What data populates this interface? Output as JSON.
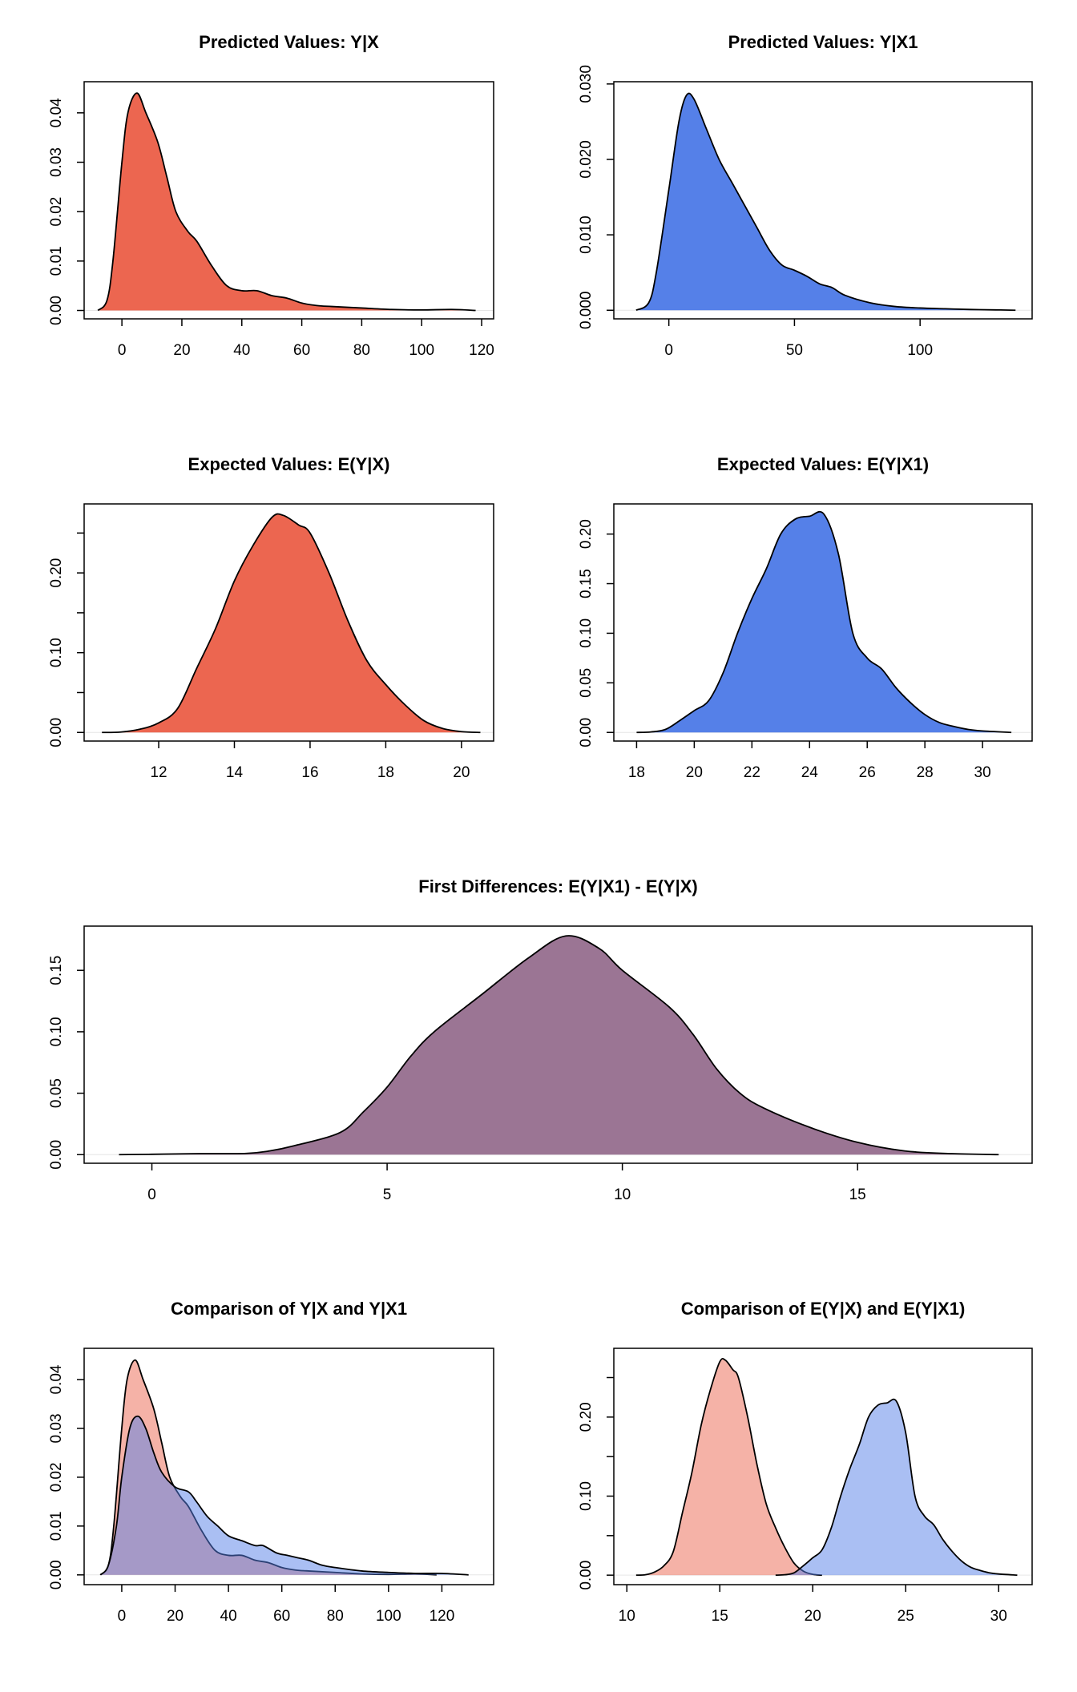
{
  "chart_data": [
    {
      "type": "area",
      "title": "Predicted Values: Y|X",
      "xlim": [
        -12.6,
        124
      ],
      "ylim": [
        -0.0017,
        0.0463
      ],
      "xticks": [
        0,
        20,
        40,
        60,
        80,
        100,
        120
      ],
      "yticks": [
        {
          "value": 0,
          "label": "0.00"
        },
        0.01,
        0.02,
        0.03,
        0.04
      ],
      "series": [
        {
          "color": "#ec6650",
          "x": [
            -8,
            -5,
            -3,
            0,
            2,
            5,
            8,
            12,
            15,
            18,
            22,
            25,
            30,
            35,
            40,
            45,
            50,
            55,
            60,
            65,
            70,
            80,
            90,
            100,
            110,
            118
          ],
          "values": [
            0,
            0.002,
            0.01,
            0.03,
            0.04,
            0.044,
            0.04,
            0.034,
            0.027,
            0.02,
            0.016,
            0.014,
            0.009,
            0.005,
            0.004,
            0.004,
            0.003,
            0.0025,
            0.0015,
            0.001,
            0.0008,
            0.0005,
            0.0002,
            0.0001,
            0.0002,
            0
          ]
        }
      ]
    },
    {
      "type": "area",
      "title": "Predicted Values: Y|X1",
      "xlim": [
        -21.9,
        144.6
      ],
      "ylim": [
        -0.00114,
        0.0303
      ],
      "xticks": [
        0,
        50,
        100
      ],
      "yticks": [
        {
          "value": 0,
          "label": "0.000"
        },
        {
          "value": 0.01,
          "label": "0.010"
        },
        {
          "value": 0.02,
          "label": "0.020"
        },
        {
          "value": 0.03,
          "label": "0.030"
        }
      ],
      "series": [
        {
          "color": "#5580e8",
          "x": [
            -13,
            -8,
            -5,
            0,
            4,
            7,
            10,
            15,
            20,
            25,
            30,
            35,
            40,
            45,
            50,
            55,
            60,
            65,
            70,
            80,
            90,
            100,
            110,
            120,
            130,
            138
          ],
          "values": [
            0,
            0.001,
            0.005,
            0.016,
            0.025,
            0.0285,
            0.028,
            0.024,
            0.02,
            0.017,
            0.014,
            0.011,
            0.008,
            0.006,
            0.0053,
            0.0045,
            0.0035,
            0.003,
            0.002,
            0.001,
            0.0005,
            0.0003,
            0.0002,
            0.0001,
            5e-05,
            0
          ]
        }
      ]
    },
    {
      "type": "area",
      "title": "Expected Values: E(Y|X)",
      "xlim": [
        10.03,
        20.85
      ],
      "ylim": [
        -0.0108,
        0.2865
      ],
      "xticks": [
        12,
        14,
        16,
        18,
        20
      ],
      "yticks": [
        {
          "value": 0,
          "label": "0.00"
        },
        {
          "value": 0.1,
          "label": "0.10"
        },
        {
          "value": 0.2,
          "label": "0.20"
        }
      ],
      "yminorticks": [
        0.05,
        0.15,
        0.25
      ],
      "series": [
        {
          "color": "#ec6650",
          "x": [
            10.5,
            11,
            11.5,
            12,
            12.5,
            13,
            13.5,
            14,
            14.5,
            15,
            15.3,
            15.7,
            16,
            16.5,
            17,
            17.5,
            18,
            18.5,
            19,
            19.5,
            20,
            20.5
          ],
          "values": [
            0,
            0.0005,
            0.004,
            0.012,
            0.03,
            0.08,
            0.13,
            0.19,
            0.235,
            0.27,
            0.272,
            0.26,
            0.25,
            0.2,
            0.14,
            0.09,
            0.06,
            0.035,
            0.015,
            0.005,
            0.001,
            0
          ]
        }
      ]
    },
    {
      "type": "area",
      "title": "Expected Values: E(Y|X1)",
      "xlim": [
        17.21,
        31.72
      ],
      "ylim": [
        -0.0087,
        0.2304
      ],
      "xticks": [
        18,
        20,
        22,
        24,
        26,
        28,
        30
      ],
      "yticks": [
        {
          "value": 0,
          "label": "0.00"
        },
        0.05,
        {
          "value": 0.1,
          "label": "0.10"
        },
        0.15,
        {
          "value": 0.2,
          "label": "0.20"
        }
      ],
      "series": [
        {
          "color": "#5580e8",
          "x": [
            18,
            18.5,
            19,
            19.5,
            20,
            20.5,
            21,
            21.5,
            22,
            22.5,
            23,
            23.5,
            24,
            24.5,
            25,
            25.5,
            26,
            26.5,
            27,
            27.5,
            28,
            28.5,
            29,
            29.5,
            30,
            31
          ],
          "values": [
            0,
            0.0005,
            0.003,
            0.012,
            0.022,
            0.032,
            0.06,
            0.1,
            0.135,
            0.165,
            0.2,
            0.215,
            0.218,
            0.22,
            0.18,
            0.1,
            0.075,
            0.064,
            0.045,
            0.03,
            0.018,
            0.01,
            0.006,
            0.003,
            0.0015,
            0
          ]
        }
      ]
    },
    {
      "type": "area",
      "title": "First Differences: E(Y|X1) - E(Y|X)",
      "xlim": [
        -1.44,
        18.71
      ],
      "ylim": [
        -0.007,
        0.186
      ],
      "xticks": [
        0,
        5,
        10,
        15
      ],
      "yticks": [
        {
          "value": 0,
          "label": "0.00"
        },
        0.05,
        {
          "value": 0.1,
          "label": "0.10"
        },
        0.15
      ],
      "series": [
        {
          "color": "#9b7594",
          "x": [
            -0.7,
            0,
            1,
            2,
            2.5,
            3,
            4,
            4.5,
            5,
            5.5,
            6,
            7,
            8,
            8.8,
            9.5,
            10,
            11,
            11.5,
            12,
            12.5,
            13,
            14,
            15,
            16,
            17,
            18
          ],
          "values": [
            0,
            0.0003,
            0.0008,
            0.001,
            0.003,
            0.007,
            0.018,
            0.035,
            0.055,
            0.08,
            0.1,
            0.13,
            0.16,
            0.178,
            0.168,
            0.15,
            0.12,
            0.098,
            0.07,
            0.05,
            0.038,
            0.022,
            0.01,
            0.003,
            0.0008,
            0
          ]
        }
      ]
    },
    {
      "type": "area",
      "title": "Comparison of Y|X and Y|X1",
      "xlim": [
        -14.1,
        139.4
      ],
      "ylim": [
        -0.002,
        0.0464
      ],
      "alpha": 0.5,
      "xticks": [
        0,
        20,
        40,
        60,
        80,
        100,
        120
      ],
      "yticks": [
        {
          "value": 0,
          "label": "0.00"
        },
        0.01,
        0.02,
        0.03,
        0.04
      ],
      "series": [
        {
          "color": "#ec6650",
          "x": [
            -8,
            -5,
            -3,
            0,
            2,
            5,
            8,
            12,
            15,
            18,
            22,
            25,
            30,
            35,
            40,
            45,
            50,
            55,
            60,
            65,
            70,
            80,
            90,
            100,
            110,
            118
          ],
          "values": [
            0,
            0.002,
            0.01,
            0.03,
            0.04,
            0.044,
            0.04,
            0.034,
            0.027,
            0.02,
            0.016,
            0.014,
            0.009,
            0.005,
            0.004,
            0.004,
            0.003,
            0.0025,
            0.0015,
            0.001,
            0.0008,
            0.0005,
            0.0002,
            0.0001,
            0.0002,
            0
          ]
        },
        {
          "color": "#5580e8",
          "x": [
            -8,
            -5,
            -2,
            0,
            3,
            6,
            9,
            12,
            15,
            20,
            25,
            28,
            32,
            36,
            40,
            45,
            50,
            53,
            58,
            62,
            66,
            70,
            75,
            80,
            90,
            100,
            110,
            120,
            130
          ],
          "values": [
            0,
            0.002,
            0.01,
            0.02,
            0.03,
            0.0325,
            0.03,
            0.025,
            0.021,
            0.018,
            0.017,
            0.015,
            0.012,
            0.01,
            0.008,
            0.007,
            0.006,
            0.006,
            0.0045,
            0.004,
            0.0035,
            0.003,
            0.002,
            0.0015,
            0.0008,
            0.0005,
            0.0003,
            0.0003,
            0
          ]
        }
      ]
    },
    {
      "type": "area",
      "title": "Comparison of E(Y|X) and E(Y|X1)",
      "xlim": [
        9.3,
        31.8
      ],
      "ylim": [
        -0.012,
        0.287
      ],
      "alpha": 0.5,
      "xticks": [
        10,
        15,
        20,
        25,
        30
      ],
      "yticks": [
        {
          "value": 0,
          "label": "0.00"
        },
        {
          "value": 0.1,
          "label": "0.10"
        },
        {
          "value": 0.2,
          "label": "0.20"
        }
      ],
      "yminorticks": [
        0.05,
        0.15,
        0.25
      ],
      "series": [
        {
          "color": "#ec6650",
          "x": [
            10.5,
            11,
            11.5,
            12,
            12.5,
            13,
            13.5,
            14,
            14.5,
            15,
            15.3,
            15.7,
            16,
            16.5,
            17,
            17.5,
            18,
            18.5,
            19,
            19.5,
            20,
            20.5
          ],
          "values": [
            0,
            0.0005,
            0.004,
            0.012,
            0.03,
            0.08,
            0.13,
            0.19,
            0.235,
            0.27,
            0.272,
            0.26,
            0.25,
            0.2,
            0.14,
            0.09,
            0.06,
            0.035,
            0.015,
            0.005,
            0.001,
            0
          ]
        },
        {
          "color": "#5580e8",
          "x": [
            18,
            18.5,
            19,
            19.5,
            20,
            20.5,
            21,
            21.5,
            22,
            22.5,
            23,
            23.5,
            24,
            24.5,
            25,
            25.5,
            26,
            26.5,
            27,
            27.5,
            28,
            28.5,
            29,
            29.5,
            30,
            31
          ],
          "values": [
            0,
            0.0005,
            0.003,
            0.012,
            0.022,
            0.032,
            0.06,
            0.1,
            0.135,
            0.165,
            0.2,
            0.215,
            0.218,
            0.22,
            0.18,
            0.1,
            0.075,
            0.064,
            0.045,
            0.03,
            0.018,
            0.01,
            0.006,
            0.003,
            0.0015,
            0
          ]
        }
      ]
    }
  ]
}
